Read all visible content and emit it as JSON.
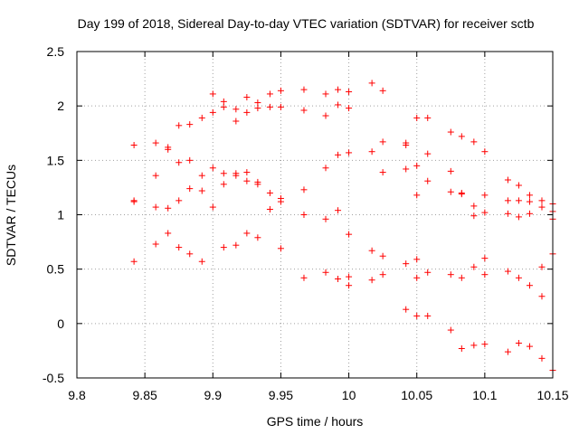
{
  "chart_data": {
    "type": "scatter",
    "title": "Day 199 of 2018, Sidereal Day-to-day VTEC variation (SDTVAR) for receiver sctb",
    "xlabel": "GPS time / hours",
    "ylabel": "SDTVAR / TECUs",
    "xlim": [
      9.8,
      10.15
    ],
    "ylim": [
      -0.5,
      2.5
    ],
    "xticks": [
      9.8,
      9.85,
      9.9,
      9.95,
      10.0,
      10.05,
      10.1,
      10.15
    ],
    "xtick_labels": [
      "9.8",
      "9.85",
      "9.9",
      "9.95",
      "10",
      "10.05",
      "10.1",
      "10.15"
    ],
    "yticks": [
      -0.5,
      0,
      0.5,
      1,
      1.5,
      2,
      2.5
    ],
    "ytick_labels": [
      "-0.5",
      "0",
      "0.5",
      "1",
      "1.5",
      "2",
      "2.5"
    ],
    "grid": true,
    "marker": "plus",
    "color": "#ff0000",
    "series": [
      {
        "name": "SDTVAR",
        "x": [
          9.842,
          9.842,
          9.842,
          9.842,
          9.858,
          9.858,
          9.858,
          9.858,
          9.867,
          9.867,
          9.867,
          9.867,
          9.875,
          9.875,
          9.875,
          9.875,
          9.883,
          9.883,
          9.883,
          9.883,
          9.892,
          9.892,
          9.892,
          9.892,
          9.9,
          9.9,
          9.9,
          9.9,
          9.908,
          9.908,
          9.908,
          9.908,
          9.908,
          9.917,
          9.917,
          9.917,
          9.917,
          9.917,
          9.925,
          9.925,
          9.925,
          9.925,
          9.925,
          9.933,
          9.933,
          9.933,
          9.933,
          9.933,
          9.942,
          9.942,
          9.942,
          9.942,
          9.95,
          9.95,
          9.95,
          9.95,
          9.95,
          9.967,
          9.967,
          9.967,
          9.967,
          9.967,
          9.983,
          9.983,
          9.983,
          9.983,
          9.983,
          9.992,
          9.992,
          9.992,
          9.992,
          9.992,
          10.0,
          10.0,
          10.0,
          10.0,
          10.0,
          10.0,
          10.017,
          10.017,
          10.017,
          10.017,
          10.025,
          10.025,
          10.025,
          10.025,
          10.025,
          10.042,
          10.042,
          10.042,
          10.042,
          10.042,
          10.05,
          10.05,
          10.05,
          10.05,
          10.05,
          10.05,
          10.058,
          10.058,
          10.058,
          10.058,
          10.058,
          10.075,
          10.075,
          10.075,
          10.075,
          10.075,
          10.083,
          10.083,
          10.083,
          10.083,
          10.083,
          10.092,
          10.092,
          10.092,
          10.092,
          10.092,
          10.1,
          10.1,
          10.1,
          10.1,
          10.1,
          10.1,
          10.117,
          10.117,
          10.117,
          10.117,
          10.117,
          10.125,
          10.125,
          10.125,
          10.125,
          10.125,
          10.133,
          10.133,
          10.133,
          10.133,
          10.133,
          10.142,
          10.142,
          10.142,
          10.142,
          10.142,
          10.15,
          10.15,
          10.15,
          10.15,
          10.15
        ],
        "y": [
          1.64,
          1.13,
          1.12,
          0.57,
          1.66,
          1.36,
          1.07,
          0.73,
          1.62,
          1.6,
          1.06,
          0.83,
          1.82,
          1.48,
          1.13,
          0.7,
          1.83,
          1.5,
          1.24,
          0.64,
          1.89,
          1.36,
          1.22,
          0.57,
          2.11,
          1.94,
          1.43,
          1.07,
          2.04,
          1.99,
          1.38,
          1.28,
          0.7,
          1.97,
          1.86,
          1.38,
          1.36,
          0.72,
          2.08,
          1.94,
          1.39,
          1.31,
          0.83,
          2.03,
          1.98,
          1.3,
          1.28,
          0.79,
          2.11,
          1.99,
          1.2,
          1.05,
          2.14,
          1.99,
          1.15,
          1.12,
          0.69,
          2.15,
          1.96,
          1.23,
          1.0,
          0.42,
          2.11,
          1.91,
          1.43,
          0.96,
          0.47,
          2.15,
          2.01,
          1.55,
          1.04,
          0.41,
          2.13,
          1.98,
          1.57,
          0.82,
          0.43,
          0.35,
          2.21,
          1.58,
          0.67,
          0.4,
          2.14,
          1.67,
          1.39,
          0.62,
          0.45,
          1.66,
          1.64,
          1.42,
          0.55,
          0.13,
          1.89,
          1.45,
          1.18,
          0.59,
          0.42,
          0.07,
          1.89,
          1.56,
          1.31,
          0.47,
          0.07,
          1.76,
          1.4,
          1.21,
          0.45,
          -0.06,
          1.72,
          1.2,
          1.19,
          0.42,
          -0.23,
          1.67,
          1.08,
          0.99,
          0.52,
          -0.2,
          1.58,
          1.18,
          1.02,
          0.6,
          0.45,
          -0.19,
          1.32,
          1.13,
          1.01,
          0.48,
          -0.26,
          1.27,
          1.13,
          0.98,
          0.42,
          -0.18,
          1.18,
          1.12,
          1.01,
          0.35,
          -0.21,
          1.13,
          1.07,
          0.52,
          0.25,
          -0.32,
          1.1,
          1.03,
          0.96,
          0.64,
          -0.43
        ]
      }
    ]
  }
}
